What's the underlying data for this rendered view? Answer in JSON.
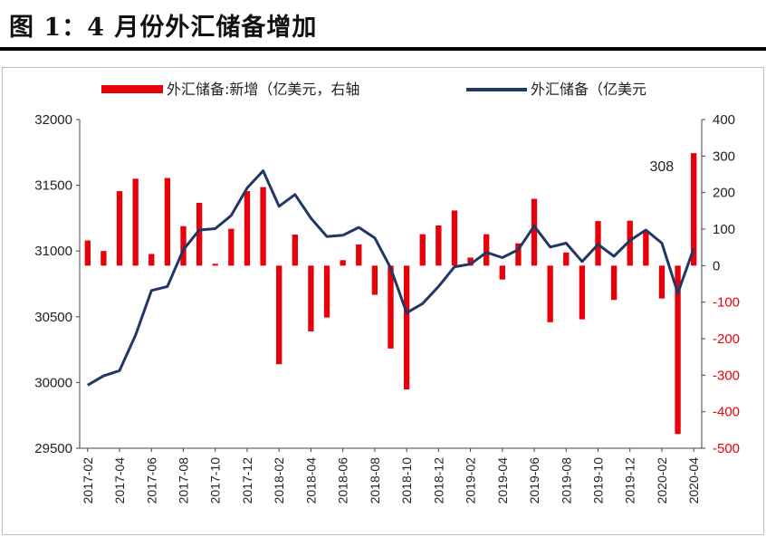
{
  "figure": {
    "title": "图 1：4 月份外汇储备增加"
  },
  "chart_data": {
    "type": "bar+line",
    "categories": [
      "2017-02",
      "2017-03",
      "2017-04",
      "2017-05",
      "2017-06",
      "2017-07",
      "2017-08",
      "2017-09",
      "2017-10",
      "2017-11",
      "2017-12",
      "2018-01",
      "2018-02",
      "2018-03",
      "2018-04",
      "2018-05",
      "2018-06",
      "2018-07",
      "2018-08",
      "2018-09",
      "2018-10",
      "2018-11",
      "2018-12",
      "2019-01",
      "2019-02",
      "2019-03",
      "2019-04",
      "2019-05",
      "2019-06",
      "2019-07",
      "2019-08",
      "2019-09",
      "2019-10",
      "2019-11",
      "2019-12",
      "2020-01",
      "2020-02",
      "2020-03",
      "2020-04"
    ],
    "x_tick_labels": [
      "2017-02",
      "2017-04",
      "2017-06",
      "2017-08",
      "2017-10",
      "2017-12",
      "2018-02",
      "2018-04",
      "2018-06",
      "2018-08",
      "2018-10",
      "2018-12",
      "2019-02",
      "2019-04",
      "2019-06",
      "2019-08",
      "2019-10",
      "2019-12",
      "2020-02",
      "2020-04"
    ],
    "series": [
      {
        "name": "外汇储备:新增（亿美元，右轴",
        "kind": "bar",
        "axis": "right",
        "color": "#e8000b",
        "values": [
          69,
          40,
          204,
          238,
          32,
          240,
          108,
          172,
          5,
          101,
          204,
          215,
          -270,
          85,
          -180,
          -142,
          15,
          58,
          -80,
          -227,
          -339,
          86,
          110,
          151,
          22,
          86,
          -38,
          61,
          183,
          -155,
          36,
          -147,
          122,
          -94,
          123,
          93,
          -90,
          -461,
          308
        ]
      },
      {
        "name": "外汇储备（亿美元",
        "kind": "line",
        "axis": "left",
        "color": "#1f3864",
        "values": [
          29980,
          30050,
          30090,
          30360,
          30700,
          30730,
          31010,
          31160,
          31170,
          31270,
          31480,
          31610,
          31340,
          31430,
          31250,
          31110,
          31120,
          31180,
          31100,
          30870,
          30530,
          30600,
          30730,
          30880,
          30900,
          30990,
          30950,
          31010,
          31190,
          31030,
          31060,
          30920,
          31050,
          30960,
          31080,
          31160,
          31060,
          30680,
          31020
        ]
      }
    ],
    "left_axis": {
      "ylim": [
        29500,
        32000
      ],
      "ticks": [
        "32000",
        "31500",
        "31000",
        "30500",
        "30000",
        "29500"
      ]
    },
    "right_axis": {
      "ylim": [
        -500,
        400
      ],
      "ticks": [
        "400",
        "300",
        "200",
        "100",
        "0",
        "-100",
        "-200",
        "-300",
        "-400",
        "-500"
      ]
    },
    "annotations": [
      {
        "text": "308",
        "series": 0,
        "index": 38
      }
    ],
    "legend": {
      "placement": "top"
    },
    "grid": false
  }
}
